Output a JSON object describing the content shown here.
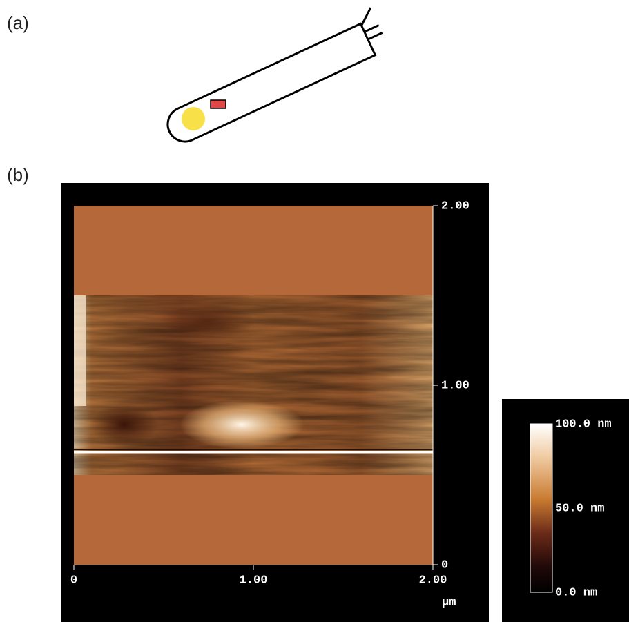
{
  "panel_a": {
    "label": "(a)"
  },
  "panel_b": {
    "label": "(b)",
    "x_axis": {
      "ticks": [
        "0",
        "1.00",
        "2.00"
      ],
      "unit": "μm"
    },
    "y_axis": {
      "ticks": [
        "2.00",
        "1.00",
        "0"
      ]
    },
    "colorbar": {
      "labels": [
        "100.0 nm",
        "50.0 nm",
        "0.0 nm"
      ]
    }
  }
}
